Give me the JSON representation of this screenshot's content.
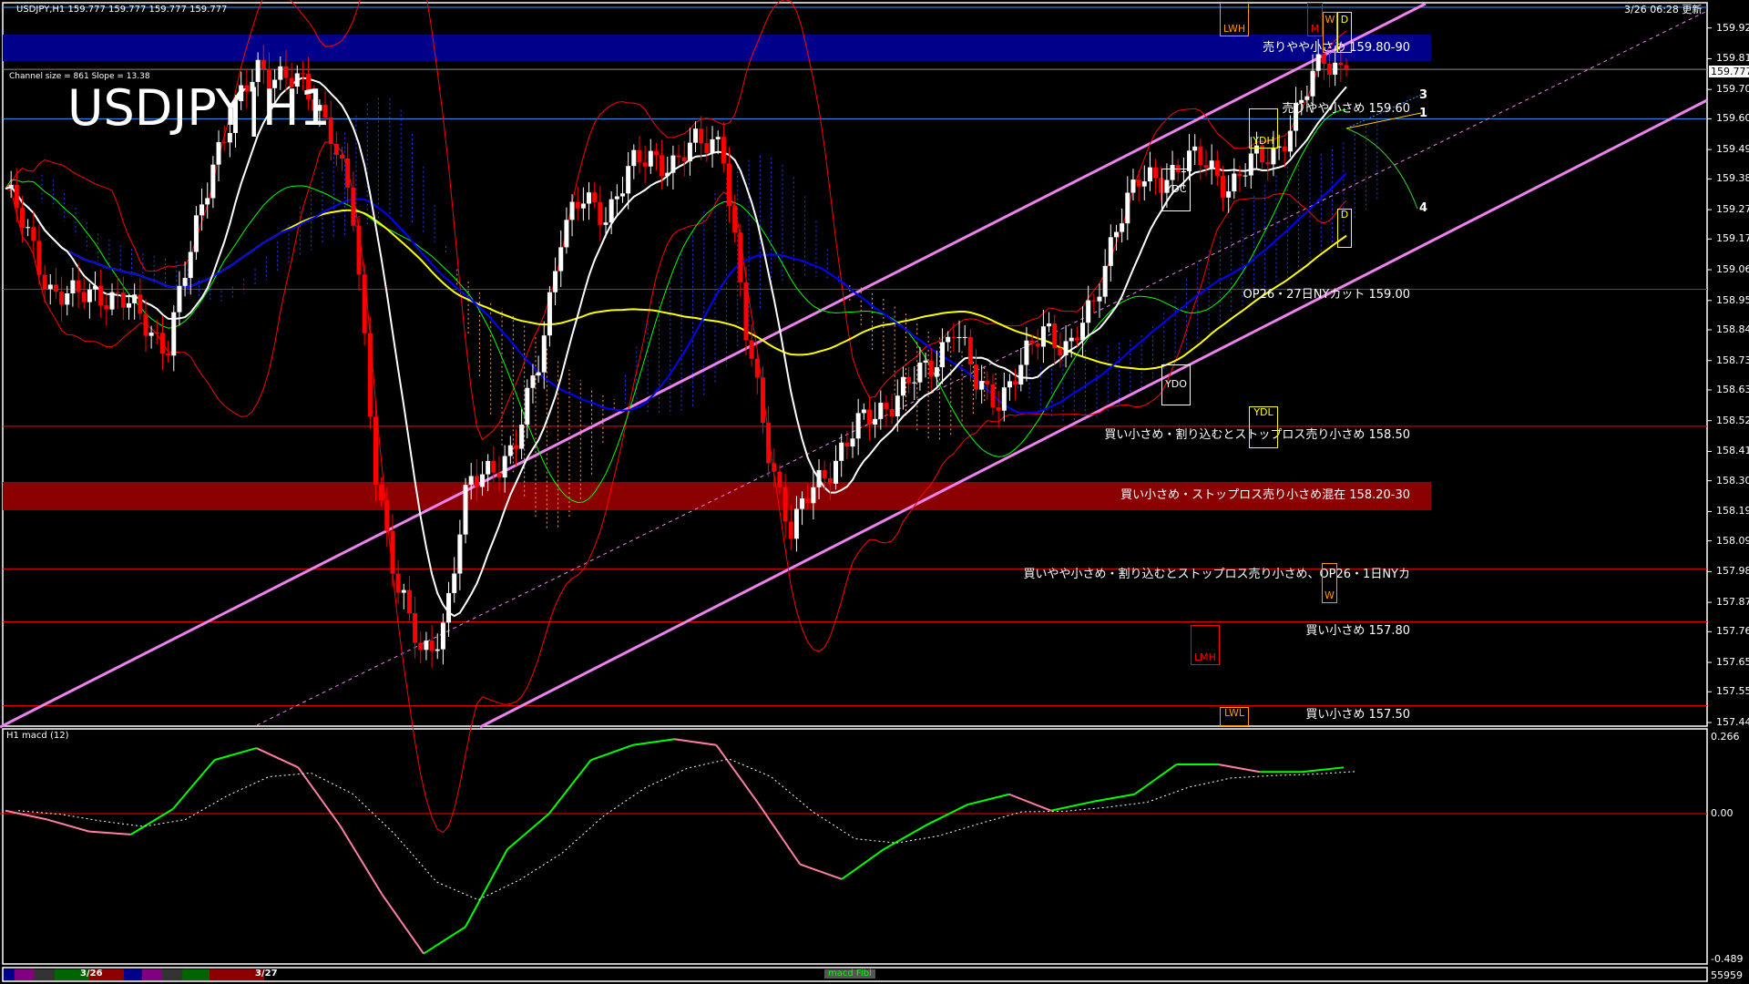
{
  "header": {
    "symbol_info": "USDJPY,H1  159.777 159.777 159.777 159.777",
    "big_title": "USDJPY|H1",
    "channel_info": "Channel size = 861 Slope = 13.38",
    "updated": "3/26 06:28 更新"
  },
  "annotations": {
    "sell_band": "売りやや小さめ 159.80-90",
    "sell_1": "売りやや小さめ 159.60",
    "op_cut": "OP26・27日NYカット 159.00",
    "buy_1": "買い小さめ・割り込むとストップロス売り小さめ 158.50",
    "buy_band": "買い小さめ・ストップロス売り小さめ混在 158.20-30",
    "buy_2": "買いやや小さめ・割り込むとストップロス売り小さめ、OP26・1日NYカ",
    "buy_3": "買い小さめ 157.80",
    "buy_4": "買い小さめ 157.50",
    "markers": {
      "lwh": "LWH",
      "m": "M",
      "w": "W",
      "d": "D",
      "ydh": "YDH",
      "ydc": "YDC",
      "ydo": "YDO",
      "ydl": "YDL",
      "d2": "D",
      "w2": "W",
      "lmh": "LMH",
      "lwl": "LWL"
    },
    "fan_labels": [
      "3",
      "1",
      "4"
    ]
  },
  "price_axis": {
    "ticks": [
      "159.925",
      "159.815",
      "159.705",
      "159.600",
      "159.490",
      "159.385",
      "159.275",
      "159.170",
      "159.060",
      "158.950",
      "158.845",
      "158.735",
      "158.630",
      "158.520",
      "158.410",
      "158.305",
      "158.195",
      "158.090",
      "157.980",
      "157.870",
      "157.765",
      "157.655",
      "157.550",
      "157.440"
    ],
    "current_price": "159.777"
  },
  "macd": {
    "title": "H1  macd (12)",
    "ticks": [
      "0.266",
      "0.00",
      "-0.489"
    ],
    "volume_readout": "55959"
  },
  "time_bar": {
    "labels": [
      "3/26",
      "3/27"
    ],
    "indicator_label": "macd Fibl"
  },
  "colors": {
    "bull": "#ffffff",
    "bear": "#ff0000",
    "ma_fast": "#ffffff",
    "ma_mid": "#ffff00",
    "ma_slow": "#0000ff",
    "channel": "#ee82ee",
    "band_sell": "#00008b",
    "band_buy": "#8b0000",
    "macd_up": "#00ff00",
    "macd_down": "#ff7f9f"
  },
  "chart_data": [
    {
      "type": "candlestick",
      "title": "USDJPY|H1",
      "ylim": [
        157.44,
        159.925
      ],
      "close": [
        159.35,
        159.17,
        158.99,
        158.95,
        158.99,
        158.95,
        158.87,
        158.79,
        159.11,
        159.47,
        159.63,
        159.79,
        159.76,
        159.69,
        159.6,
        159.27,
        158.35,
        157.91,
        157.67,
        157.81,
        158.27,
        158.37,
        158.4,
        158.71,
        159.19,
        159.3,
        159.27,
        159.41,
        159.47,
        159.44,
        159.51,
        159.54,
        158.83,
        158.43,
        158.11,
        158.29,
        158.4,
        158.5,
        158.58,
        158.64,
        158.71,
        158.87,
        158.64,
        158.61,
        158.71,
        158.87,
        158.77,
        158.91,
        159.23,
        159.36,
        159.4,
        159.44,
        159.44,
        159.36,
        159.44,
        159.5,
        159.63,
        159.83,
        159.777
      ],
      "levels": [
        159.9,
        159.8,
        159.6,
        159.0,
        158.5,
        158.3,
        158.2,
        157.99,
        157.8,
        157.5
      ]
    },
    {
      "type": "line",
      "title": "H1  macd (12)",
      "ylim": [
        -0.489,
        0.266
      ],
      "macd": [
        0.01,
        -0.02,
        -0.06,
        -0.07,
        0.015,
        0.18,
        0.22,
        0.155,
        -0.04,
        -0.27,
        -0.47,
        -0.38,
        -0.12,
        0.0,
        0.18,
        0.23,
        0.25,
        0.23,
        0.035,
        -0.17,
        -0.22,
        -0.12,
        -0.04,
        0.03,
        0.065,
        0.01,
        0.04,
        0.065,
        0.165,
        0.165,
        0.14,
        0.14,
        0.155
      ]
    }
  ]
}
